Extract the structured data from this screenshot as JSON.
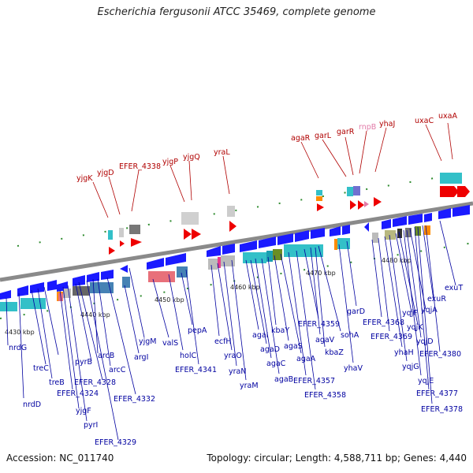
{
  "title": "Escherichia fergusonii ATCC 35469, complete genome",
  "footer": {
    "accession": "Accession: NC_011740",
    "topology": "Topology: circular; Length: 4,588,711 bp; Genes: 4,440"
  },
  "ticks": [
    "4430 kbp",
    "4440 kbp",
    "4450 kbp",
    "4460 kbp",
    "4470 kbp",
    "4480 kbp"
  ],
  "forward_genes": [
    "yjgK",
    "yjgD",
    "EFER_4338",
    "yjgP",
    "yjgQ",
    "yraL",
    "agaR",
    "garL",
    "garR",
    "rnpB",
    "yhaJ",
    "uxaC",
    "uxaA"
  ],
  "reverse_genes": [
    "nrdG",
    "nrdD",
    "treC",
    "treB",
    "EFER_4324",
    "yjgF",
    "pyrI",
    "pyrB",
    "EFER_4328",
    "EFER_4329",
    "arcB",
    "arcC",
    "EFER_4332",
    "argI",
    "yjgM",
    "valS",
    "holC",
    "pepA",
    "EFER_4341",
    "ecfH",
    "yraO",
    "yraN",
    "yraM",
    "agaI",
    "agaD",
    "agaC",
    "agaB",
    "kbaY",
    "agaS",
    "agaA",
    "EFER_4357",
    "EFER_4358",
    "EFER_4359",
    "agaV",
    "kbaZ",
    "sohA",
    "yhaV",
    "garD",
    "EFER_4368",
    "EFER_4369",
    "yhaH",
    "yqjG",
    "yqjF",
    "yqjK",
    "yqjE",
    "yqjD",
    "yqjA",
    "EFER_4377",
    "EFER_4378",
    "exuR",
    "EFER_4380",
    "exuT"
  ],
  "colors": {
    "backbone": "#8a8a8a",
    "fwd_label": "#b00000",
    "rev_label": "#0000a0",
    "rnpB": "#e27aa8",
    "arrow_blue": "#1a1aff",
    "arrow_red": "#ee0000",
    "teal": "#33c0c8",
    "tick_green": "#2e8b2e"
  }
}
